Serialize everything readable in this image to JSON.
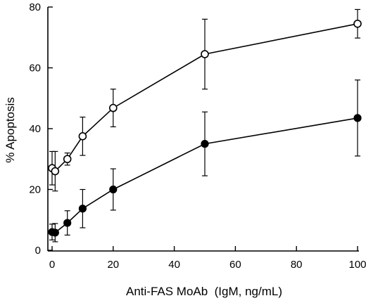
{
  "chart_data": {
    "type": "line",
    "title": "",
    "xlabel": "Anti-FAS MoAb  (IgM, ng/mL)",
    "ylabel": "% Apoptosis",
    "xlim": [
      0,
      100
    ],
    "ylim": [
      0,
      80
    ],
    "xticks": [
      0,
      20,
      40,
      60,
      80,
      100
    ],
    "yticks": [
      0,
      20,
      40,
      60,
      80
    ],
    "grid": false,
    "legend": "none",
    "x": [
      0,
      1,
      5,
      10,
      20,
      50,
      100
    ],
    "series": [
      {
        "marker": "open-circle",
        "values": [
          27,
          26,
          30,
          37.5,
          46.8,
          64.5,
          74.5
        ],
        "errors": [
          5.5,
          6.5,
          2,
          6.3,
          6.2,
          11.5,
          4.7
        ]
      },
      {
        "marker": "filled-circle",
        "values": [
          6,
          5.8,
          9,
          13.7,
          20,
          35,
          43.5
        ],
        "errors": [
          2.6,
          3,
          4,
          6.3,
          6.8,
          10.5,
          12.5
        ]
      }
    ]
  }
}
